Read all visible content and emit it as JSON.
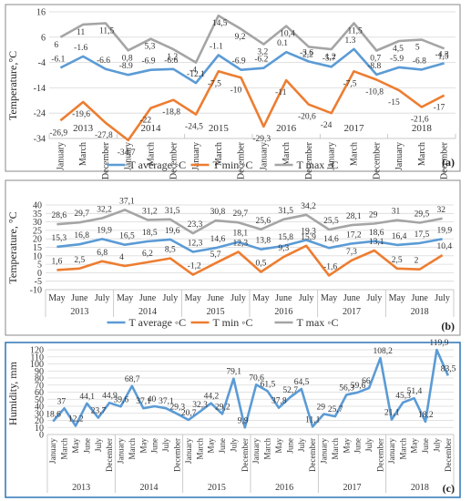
{
  "chart_data": [
    {
      "type": "line",
      "panel_label": "(a)",
      "ylabel": "Temperature,°C",
      "ylim": [
        -34,
        16
      ],
      "yticks": [
        16,
        6,
        -4,
        -14,
        -24,
        -34
      ],
      "x_month_labels": [
        "January",
        "March",
        "December",
        "January",
        "March",
        "December",
        "January",
        "March",
        "December",
        "January",
        "March",
        "December",
        "January",
        "March",
        "December",
        "January",
        "March",
        "December"
      ],
      "years": [
        "2013",
        "2014",
        "2015",
        "2016",
        "2017",
        "2018"
      ],
      "legend_position": "bottom-center",
      "grid": true,
      "series": [
        {
          "name": "T average ◦C",
          "color": "#5B9BD5",
          "values": [
            -6.1,
            -1.6,
            -6.6,
            -8.9,
            -6.9,
            -6.6,
            -12.1,
            -1.1,
            -6.9,
            -6.2,
            0.1,
            -3.6,
            -5.7,
            1.3,
            -8.8,
            -5.9,
            -6.8,
            -4.3
          ],
          "labels": [
            "-6.1",
            "-1.6",
            "-6.6",
            "-8.9",
            "-6.9",
            "-6.6",
            "-12.1",
            "-1.1",
            "-6.9",
            "-6.2",
            "0.1",
            "-3.6",
            "-5.7",
            "1.3",
            "-8.8",
            "-5.9",
            "-6.8",
            "-4.3"
          ]
        },
        {
          "name": "T min ◦C",
          "color": "#ED7D31",
          "values": [
            -26.9,
            -19.6,
            -27.8,
            -34.7,
            -22,
            -18.8,
            -24.5,
            -7.5,
            -10,
            -29.3,
            -11,
            -20.6,
            -24,
            -7.5,
            -10.8,
            -15,
            -21.6,
            -17
          ],
          "labels": [
            "-26,9",
            "-19,6",
            "-27,8",
            "-34,7",
            "-22",
            "-18,8",
            "-24,5",
            "-7,5",
            "-10",
            "-29,3",
            "-11",
            "-20,6",
            "-24",
            "-7,5",
            "-10,8",
            "-15",
            "-21,6",
            "-17"
          ]
        },
        {
          "name": "T max ◦C",
          "color": "#A5A5A5",
          "values": [
            6,
            11,
            11.5,
            0.8,
            5.3,
            1.2,
            -4,
            14.5,
            9.2,
            3.2,
            10.4,
            2.2,
            1.2,
            11.5,
            0.7,
            4.5,
            5,
            1.5
          ],
          "labels": [
            "6",
            "11",
            "11,5",
            "0,8",
            "5,3",
            "1,2",
            "-4",
            "14,5",
            "9,2",
            "3,2",
            "10,4",
            "2,2",
            "1,2",
            "11,5",
            "0,7",
            "4,5",
            "5",
            "1,5"
          ]
        }
      ]
    },
    {
      "type": "line",
      "panel_label": "(b)",
      "ylabel": "Temperature, °C",
      "ylim": [
        -10,
        40
      ],
      "yticks": [
        40,
        35,
        30,
        25,
        20,
        15,
        10,
        5,
        0,
        -5,
        -10
      ],
      "x_month_labels": [
        "May",
        "June",
        "July",
        "May",
        "June",
        "July",
        "May",
        "June",
        "July",
        "May",
        "June",
        "July",
        "May",
        "June",
        "July",
        "May",
        "June",
        "July"
      ],
      "years": [
        "2013",
        "2014",
        "2015",
        "2016",
        "2017",
        "2018"
      ],
      "legend_position": "bottom-center",
      "grid": true,
      "series": [
        {
          "name": "T average ◦C",
          "color": "#5B9BD5",
          "values": [
            15.3,
            16.8,
            19.9,
            16.5,
            18.5,
            19.6,
            12.3,
            14.6,
            18.1,
            13.8,
            15.8,
            19.3,
            14.6,
            17.2,
            18.6,
            16.4,
            17.5,
            19.9
          ],
          "labels": [
            "15,3",
            "16,8",
            "19,9",
            "16,5",
            "18,5",
            "19,6",
            "12,3",
            "14,6",
            "18,1",
            "13,8",
            "15,8",
            "19,3",
            "14,6",
            "17,2",
            "18,6",
            "16,4",
            "17,5",
            "19,9"
          ]
        },
        {
          "name": "T min ◦C",
          "color": "#ED7D31",
          "values": [
            1.6,
            2.5,
            6.8,
            4,
            6.2,
            8.5,
            -1.2,
            5.7,
            12.3,
            0.5,
            9.3,
            15.9,
            -1.6,
            7.3,
            13.1,
            2.5,
            2,
            10.4
          ],
          "labels": [
            "1,6",
            "2,5",
            "6,8",
            "4",
            "6,2",
            "8,5",
            "-1,2",
            "5,7",
            "12,3",
            "0,5",
            "9,3",
            "15,9",
            "-1,6",
            "7,3",
            "13,1",
            "2,5",
            "2",
            "10,4"
          ]
        },
        {
          "name": "T max ◦C",
          "color": "#A5A5A5",
          "values": [
            28.6,
            29.7,
            32.2,
            37.1,
            31.2,
            31.5,
            23.3,
            30.8,
            29.7,
            25.6,
            31.5,
            34.2,
            25.5,
            28.1,
            29,
            31,
            29.5,
            32
          ],
          "labels": [
            "28,6",
            "29,7",
            "32,2",
            "37,1",
            "31,2",
            "31,5",
            "23,3",
            "30,8",
            "29,7",
            "25,6",
            "31,5",
            "34,2",
            "25,5",
            "28,1",
            "29",
            "31",
            "29,5",
            "32"
          ]
        }
      ]
    },
    {
      "type": "line",
      "panel_label": "(c)",
      "ylabel": "Humidity, mm",
      "ylim": [
        0,
        120
      ],
      "yticks": [
        120,
        110,
        100,
        90,
        80,
        70,
        60,
        50,
        40,
        30,
        20,
        10,
        0
      ],
      "x_month_labels": [
        "January",
        "March",
        "May",
        "June",
        "July",
        "December",
        "January",
        "March",
        "May",
        "June",
        "July",
        "December",
        "January",
        "March",
        "May",
        "June",
        "July",
        "December",
        "January",
        "March",
        "May",
        "June",
        "July",
        "December",
        "January",
        "March",
        "May",
        "June",
        "July",
        "December",
        "January",
        "March",
        "May",
        "June",
        "July",
        "December"
      ],
      "years": [
        "2013",
        "2014",
        "2015",
        "2016",
        "2017",
        "2018"
      ],
      "grid": true,
      "series": [
        {
          "name": "",
          "color": "#5B9BD5",
          "values": [
            18.6,
            37,
            12.2,
            44.1,
            23.7,
            44.9,
            39.6,
            68.7,
            37.1,
            40,
            37.1,
            29.3,
            20.7,
            32.3,
            44.2,
            29.2,
            79.1,
            9.9,
            70.6,
            61.5,
            37.8,
            52.7,
            64.5,
            11.1,
            29,
            25.7,
            56.3,
            59.6,
            66,
            108.2,
            21.1,
            45.3,
            51.4,
            18.2,
            119.9,
            83.5
          ],
          "labels": [
            "18,6",
            "37",
            "12,2",
            "44,1",
            "23,7",
            "44,9",
            "39,6",
            "68,7",
            "37,1",
            "40",
            "37,1",
            "29,3",
            "20,7",
            "32,3",
            "44,2",
            "29,2",
            "79,1",
            "9,9",
            "70,6",
            "61,5",
            "37,8",
            "52,7",
            "64,5",
            "11,1",
            "29",
            "25,7",
            "56,3",
            "59,6",
            "66",
            "108,2",
            "21,1",
            "45,3",
            "51,4",
            "18,2",
            "119,9",
            "83,5"
          ]
        }
      ]
    }
  ]
}
